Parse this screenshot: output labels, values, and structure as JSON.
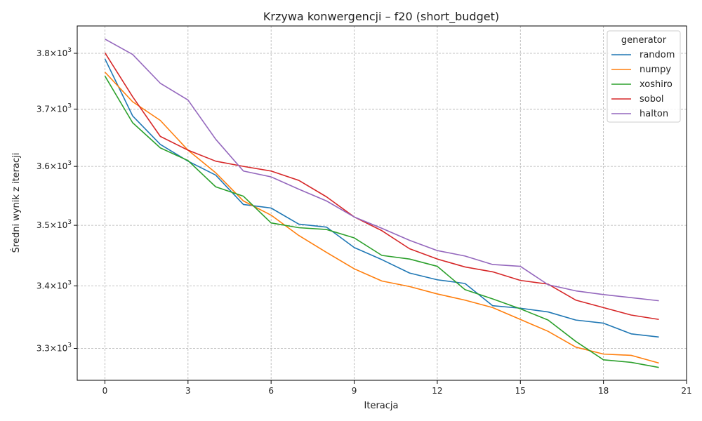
{
  "chart_data": {
    "type": "line",
    "title": "Krzywa konwergencji – f20 (short_budget)",
    "xlabel": "Iteracja",
    "ylabel": "Średni wynik z iteracji",
    "yscale": "log",
    "grid": true,
    "legend_placement": "top-right",
    "legend_title": "generator",
    "xlim": [
      -1,
      21
    ],
    "ylim": [
      3250,
      3850
    ],
    "x_ticks": [
      0,
      3,
      6,
      9,
      12,
      15,
      18,
      21
    ],
    "y_ticks": [
      {
        "value": 3300,
        "mantissa": "3.3",
        "base": "10",
        "exp": "3"
      },
      {
        "value": 3400,
        "mantissa": "3.4",
        "base": "10",
        "exp": "3"
      },
      {
        "value": 3500,
        "mantissa": "3.5",
        "base": "10",
        "exp": "3"
      },
      {
        "value": 3600,
        "mantissa": "3.6",
        "base": "10",
        "exp": "3"
      },
      {
        "value": 3700,
        "mantissa": "3.7",
        "base": "10",
        "exp": "3"
      },
      {
        "value": 3800,
        "mantissa": "3.8",
        "base": "10",
        "exp": "3"
      }
    ],
    "x": [
      0,
      1,
      2,
      3,
      4,
      5,
      6,
      7,
      8,
      9,
      10,
      11,
      12,
      13,
      14,
      15,
      16,
      17,
      18,
      19,
      20
    ],
    "series": [
      {
        "name": "random",
        "color": "#1f77b4",
        "values": [
          3790,
          3688,
          3638,
          3609,
          3585,
          3535,
          3529,
          3502,
          3497,
          3463,
          3443,
          3421,
          3410,
          3404,
          3368,
          3364,
          3358,
          3345,
          3340,
          3323,
          3318
        ]
      },
      {
        "name": "numpy",
        "color": "#ff7f0e",
        "values": [
          3766,
          3713,
          3680,
          3628,
          3589,
          3541,
          3517,
          3483,
          3455,
          3428,
          3408,
          3399,
          3387,
          3377,
          3365,
          3346,
          3327,
          3302,
          3291,
          3289,
          3277
        ]
      },
      {
        "name": "xoshiro",
        "color": "#2ca02c",
        "values": [
          3759,
          3676,
          3632,
          3610,
          3565,
          3549,
          3504,
          3496,
          3493,
          3479,
          3450,
          3444,
          3432,
          3394,
          3379,
          3363,
          3345,
          3311,
          3282,
          3278,
          3270
        ]
      },
      {
        "name": "sobol",
        "color": "#d62728",
        "values": [
          3801,
          3722,
          3652,
          3628,
          3609,
          3600,
          3592,
          3576,
          3548,
          3514,
          3491,
          3461,
          3444,
          3431,
          3423,
          3409,
          3403,
          3377,
          3365,
          3353,
          3346
        ]
      },
      {
        "name": "halton",
        "color": "#9467bd",
        "values": [
          3826,
          3798,
          3746,
          3716,
          3647,
          3592,
          3582,
          3561,
          3541,
          3514,
          3495,
          3475,
          3458,
          3449,
          3435,
          3432,
          3402,
          3392,
          3386,
          3381,
          3376
        ]
      }
    ]
  }
}
